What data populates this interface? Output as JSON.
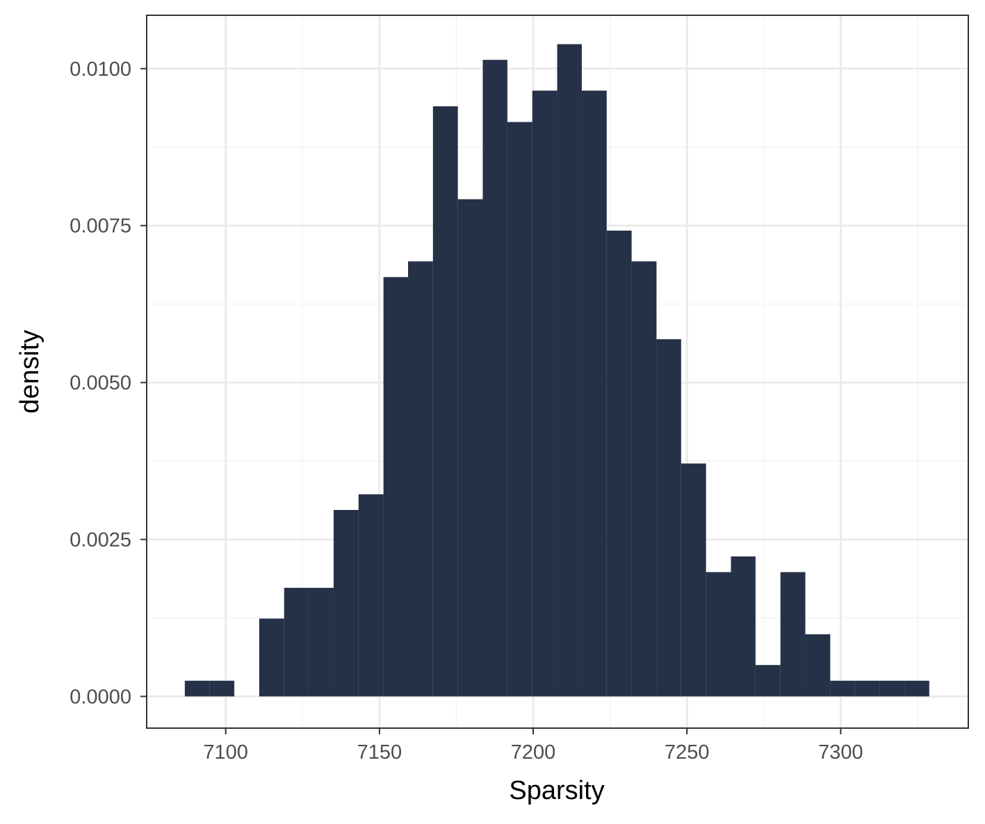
{
  "chart_data": {
    "type": "histogram",
    "title": "",
    "xlabel": "Sparsity",
    "ylabel": "density",
    "xlim": [
      7074.3,
      7341.5
    ],
    "ylim": [
      -0.000505,
      0.01085
    ],
    "x_ticks": [
      7100,
      7150,
      7200,
      7250,
      7300
    ],
    "x_tick_labels": [
      "7100",
      "7150",
      "7200",
      "7250",
      "7300"
    ],
    "y_ticks": [
      0,
      0.0025,
      0.005,
      0.0075,
      0.01
    ],
    "y_tick_labels": [
      "0.0000",
      "0.0025",
      "0.0050",
      "0.0075",
      "0.0100"
    ],
    "grid": true,
    "legend": "none",
    "bin_width": 8.07,
    "bins": [
      {
        "x0": 7086.7,
        "x1": 7094.8,
        "density": 0.00025
      },
      {
        "x0": 7094.8,
        "x1": 7102.8,
        "density": 0.00025
      },
      {
        "x0": 7102.8,
        "x1": 7110.9,
        "density": 0.0
      },
      {
        "x0": 7110.9,
        "x1": 7119.0,
        "density": 0.00124
      },
      {
        "x0": 7119.0,
        "x1": 7127.1,
        "density": 0.00173
      },
      {
        "x0": 7127.1,
        "x1": 7135.1,
        "density": 0.00173
      },
      {
        "x0": 7135.1,
        "x1": 7143.2,
        "density": 0.00297
      },
      {
        "x0": 7143.2,
        "x1": 7151.3,
        "density": 0.00322
      },
      {
        "x0": 7151.3,
        "x1": 7159.3,
        "density": 0.00668
      },
      {
        "x0": 7159.3,
        "x1": 7167.4,
        "density": 0.00693
      },
      {
        "x0": 7167.4,
        "x1": 7175.5,
        "density": 0.0094
      },
      {
        "x0": 7175.5,
        "x1": 7183.6,
        "density": 0.00792
      },
      {
        "x0": 7183.6,
        "x1": 7191.6,
        "density": 0.01014
      },
      {
        "x0": 7191.6,
        "x1": 7199.7,
        "density": 0.00915
      },
      {
        "x0": 7199.7,
        "x1": 7207.8,
        "density": 0.00965
      },
      {
        "x0": 7207.8,
        "x1": 7215.8,
        "density": 0.01039
      },
      {
        "x0": 7215.8,
        "x1": 7223.9,
        "density": 0.00965
      },
      {
        "x0": 7223.9,
        "x1": 7232.0,
        "density": 0.00742
      },
      {
        "x0": 7232.0,
        "x1": 7240.1,
        "density": 0.00693
      },
      {
        "x0": 7240.1,
        "x1": 7248.1,
        "density": 0.00569
      },
      {
        "x0": 7248.1,
        "x1": 7256.2,
        "density": 0.00371
      },
      {
        "x0": 7256.2,
        "x1": 7264.3,
        "density": 0.00198
      },
      {
        "x0": 7264.3,
        "x1": 7272.3,
        "density": 0.00223
      },
      {
        "x0": 7272.3,
        "x1": 7280.4,
        "density": 0.0005
      },
      {
        "x0": 7280.4,
        "x1": 7288.5,
        "density": 0.00198
      },
      {
        "x0": 7288.5,
        "x1": 7296.6,
        "density": 0.00099
      },
      {
        "x0": 7296.6,
        "x1": 7304.6,
        "density": 0.00025
      },
      {
        "x0": 7304.6,
        "x1": 7312.7,
        "density": 0.00025
      },
      {
        "x0": 7312.7,
        "x1": 7320.8,
        "density": 0.00025
      },
      {
        "x0": 7320.8,
        "x1": 7328.8,
        "density": 0.00025
      }
    ],
    "colors": {
      "bar": "#253147",
      "panel_border": "#333333",
      "grid_major": "#ebebeb",
      "grid_minor": "#f3f3f3",
      "tick_mark": "#333333",
      "tick_label": "#4d4d4d",
      "axis_title": "#000000"
    }
  }
}
